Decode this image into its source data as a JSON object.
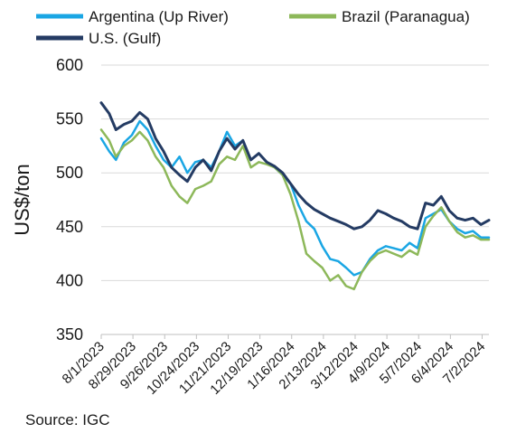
{
  "chart_data": {
    "type": "line",
    "title": "",
    "xlabel": "",
    "ylabel": "US$/ton",
    "ylim": [
      350,
      600
    ],
    "yticks": [
      350,
      400,
      450,
      500,
      550,
      600
    ],
    "x_tick_labels": [
      "8/1/2023",
      "8/29/2023",
      "9/26/2023",
      "10/24/2023",
      "11/21/2023",
      "12/19/2023",
      "1/16/2024",
      "2/13/2024",
      "3/12/2024",
      "4/9/2024",
      "5/7/2024",
      "6/4/2024",
      "7/2/2024"
    ],
    "x_start": "8/1/2023",
    "x_end": "7/8/2024",
    "grid": "horizontal",
    "legend_position": "top",
    "source": "Source: IGC",
    "series": [
      {
        "name": "Argentina (Up River)",
        "color": "#1aa6e4",
        "points": [
          [
            "2023-08-01",
            532
          ],
          [
            "2023-08-08",
            520
          ],
          [
            "2023-08-14",
            512
          ],
          [
            "2023-08-21",
            528
          ],
          [
            "2023-08-28",
            535
          ],
          [
            "2023-09-04",
            548
          ],
          [
            "2023-09-11",
            540
          ],
          [
            "2023-09-18",
            525
          ],
          [
            "2023-09-25",
            512
          ],
          [
            "2023-10-02",
            505
          ],
          [
            "2023-10-09",
            515
          ],
          [
            "2023-10-16",
            500
          ],
          [
            "2023-10-23",
            510
          ],
          [
            "2023-10-30",
            512
          ],
          [
            "2023-11-06",
            505
          ],
          [
            "2023-11-13",
            520
          ],
          [
            "2023-11-20",
            538
          ],
          [
            "2023-11-27",
            525
          ],
          [
            "2023-12-04",
            530
          ],
          [
            "2023-12-11",
            512
          ],
          [
            "2023-12-18",
            518
          ],
          [
            "2023-12-25",
            510
          ],
          [
            "2024-01-01",
            505
          ],
          [
            "2024-01-08",
            498
          ],
          [
            "2024-01-15",
            490
          ],
          [
            "2024-01-22",
            470
          ],
          [
            "2024-01-29",
            455
          ],
          [
            "2024-02-05",
            448
          ],
          [
            "2024-02-12",
            432
          ],
          [
            "2024-02-19",
            420
          ],
          [
            "2024-02-26",
            418
          ],
          [
            "2024-03-04",
            412
          ],
          [
            "2024-03-11",
            405
          ],
          [
            "2024-03-18",
            408
          ],
          [
            "2024-03-25",
            420
          ],
          [
            "2024-04-01",
            428
          ],
          [
            "2024-04-08",
            432
          ],
          [
            "2024-04-15",
            430
          ],
          [
            "2024-04-22",
            428
          ],
          [
            "2024-04-29",
            435
          ],
          [
            "2024-05-06",
            430
          ],
          [
            "2024-05-13",
            458
          ],
          [
            "2024-05-20",
            462
          ],
          [
            "2024-05-27",
            466
          ],
          [
            "2024-06-03",
            455
          ],
          [
            "2024-06-10",
            448
          ],
          [
            "2024-06-17",
            444
          ],
          [
            "2024-06-24",
            446
          ],
          [
            "2024-07-01",
            440
          ],
          [
            "2024-07-08",
            440
          ]
        ]
      },
      {
        "name": "Brazil (Paranagua)",
        "color": "#8db85a",
        "points": [
          [
            "2023-08-01",
            540
          ],
          [
            "2023-08-08",
            530
          ],
          [
            "2023-08-14",
            515
          ],
          [
            "2023-08-21",
            525
          ],
          [
            "2023-08-28",
            530
          ],
          [
            "2023-09-04",
            538
          ],
          [
            "2023-09-11",
            530
          ],
          [
            "2023-09-18",
            515
          ],
          [
            "2023-09-25",
            505
          ],
          [
            "2023-10-02",
            488
          ],
          [
            "2023-10-09",
            478
          ],
          [
            "2023-10-16",
            472
          ],
          [
            "2023-10-23",
            485
          ],
          [
            "2023-10-30",
            488
          ],
          [
            "2023-11-06",
            492
          ],
          [
            "2023-11-13",
            508
          ],
          [
            "2023-11-20",
            515
          ],
          [
            "2023-11-27",
            512
          ],
          [
            "2023-12-04",
            525
          ],
          [
            "2023-12-11",
            505
          ],
          [
            "2023-12-18",
            510
          ],
          [
            "2023-12-25",
            508
          ],
          [
            "2024-01-01",
            505
          ],
          [
            "2024-01-08",
            498
          ],
          [
            "2024-01-15",
            480
          ],
          [
            "2024-01-22",
            455
          ],
          [
            "2024-01-29",
            425
          ],
          [
            "2024-02-05",
            418
          ],
          [
            "2024-02-12",
            412
          ],
          [
            "2024-02-19",
            400
          ],
          [
            "2024-02-26",
            405
          ],
          [
            "2024-03-04",
            395
          ],
          [
            "2024-03-11",
            392
          ],
          [
            "2024-03-18",
            408
          ],
          [
            "2024-03-25",
            418
          ],
          [
            "2024-04-01",
            425
          ],
          [
            "2024-04-08",
            428
          ],
          [
            "2024-04-15",
            425
          ],
          [
            "2024-04-22",
            422
          ],
          [
            "2024-04-29",
            428
          ],
          [
            "2024-05-06",
            424
          ],
          [
            "2024-05-13",
            450
          ],
          [
            "2024-05-20",
            460
          ],
          [
            "2024-05-27",
            468
          ],
          [
            "2024-06-03",
            455
          ],
          [
            "2024-06-10",
            445
          ],
          [
            "2024-06-17",
            440
          ],
          [
            "2024-06-24",
            442
          ],
          [
            "2024-07-01",
            438
          ],
          [
            "2024-07-08",
            438
          ]
        ]
      },
      {
        "name": "U.S. (Gulf)",
        "color": "#243b63",
        "points": [
          [
            "2023-08-01",
            565
          ],
          [
            "2023-08-08",
            555
          ],
          [
            "2023-08-14",
            540
          ],
          [
            "2023-08-21",
            545
          ],
          [
            "2023-08-28",
            548
          ],
          [
            "2023-09-04",
            556
          ],
          [
            "2023-09-11",
            550
          ],
          [
            "2023-09-18",
            532
          ],
          [
            "2023-09-25",
            520
          ],
          [
            "2023-10-02",
            505
          ],
          [
            "2023-10-09",
            498
          ],
          [
            "2023-10-16",
            492
          ],
          [
            "2023-10-23",
            505
          ],
          [
            "2023-10-30",
            512
          ],
          [
            "2023-11-06",
            502
          ],
          [
            "2023-11-13",
            520
          ],
          [
            "2023-11-20",
            532
          ],
          [
            "2023-11-27",
            522
          ],
          [
            "2023-12-04",
            530
          ],
          [
            "2023-12-11",
            512
          ],
          [
            "2023-12-18",
            518
          ],
          [
            "2023-12-25",
            510
          ],
          [
            "2024-01-01",
            506
          ],
          [
            "2024-01-08",
            500
          ],
          [
            "2024-01-15",
            490
          ],
          [
            "2024-01-22",
            480
          ],
          [
            "2024-01-29",
            472
          ],
          [
            "2024-02-05",
            466
          ],
          [
            "2024-02-12",
            462
          ],
          [
            "2024-02-19",
            458
          ],
          [
            "2024-02-26",
            455
          ],
          [
            "2024-03-04",
            452
          ],
          [
            "2024-03-11",
            448
          ],
          [
            "2024-03-18",
            450
          ],
          [
            "2024-03-25",
            456
          ],
          [
            "2024-04-01",
            465
          ],
          [
            "2024-04-08",
            462
          ],
          [
            "2024-04-15",
            458
          ],
          [
            "2024-04-22",
            455
          ],
          [
            "2024-04-29",
            450
          ],
          [
            "2024-05-06",
            448
          ],
          [
            "2024-05-13",
            472
          ],
          [
            "2024-05-20",
            470
          ],
          [
            "2024-05-27",
            478
          ],
          [
            "2024-06-03",
            465
          ],
          [
            "2024-06-10",
            458
          ],
          [
            "2024-06-17",
            456
          ],
          [
            "2024-06-24",
            458
          ],
          [
            "2024-07-01",
            452
          ],
          [
            "2024-07-08",
            456
          ]
        ]
      }
    ]
  }
}
